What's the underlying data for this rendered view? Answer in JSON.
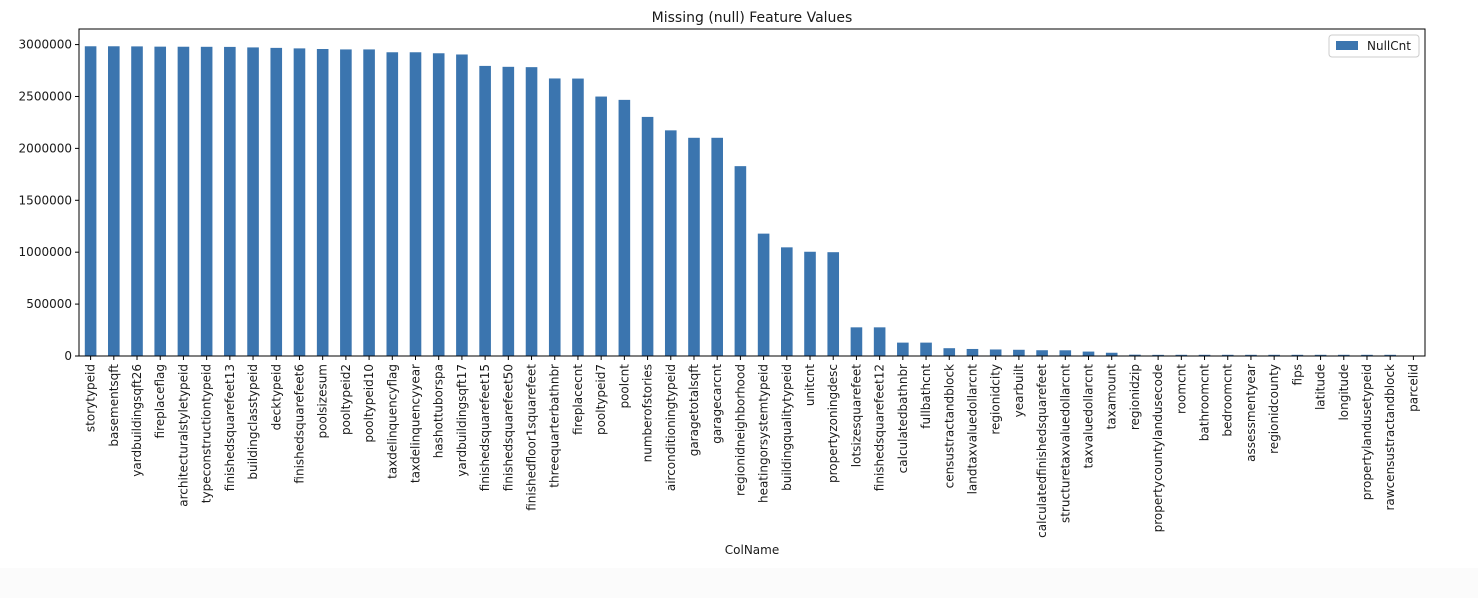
{
  "chart_data": {
    "type": "bar",
    "title": "Missing (null) Feature Values",
    "xlabel": "ColName",
    "ylabel": "",
    "ylim": [
      0,
      3150000
    ],
    "yticks": [
      0,
      500000,
      1000000,
      1500000,
      2000000,
      2500000,
      3000000
    ],
    "ytick_labels": [
      "0",
      "500000",
      "1000000",
      "1500000",
      "2000000",
      "2500000",
      "3000000"
    ],
    "grid": false,
    "legend_position": "top-right",
    "categories": [
      "storytypeid",
      "basementsqft",
      "yardbuildingsqft26",
      "fireplaceflag",
      "architecturalstyletypeid",
      "typeconstructiontypeid",
      "finishedsquarefeet13",
      "buildingclasstypeid",
      "decktypeid",
      "finishedsquarefeet6",
      "poolsizesum",
      "pooltypeid2",
      "pooltypeid10",
      "taxdelinquencyflag",
      "taxdelinquencyyear",
      "hashottuborspa",
      "yardbuildingsqft17",
      "finishedsquarefeet15",
      "finishedsquarefeet50",
      "finishedfloor1squarefeet",
      "threequarterbathnbr",
      "fireplacecnt",
      "pooltypeid7",
      "poolcnt",
      "numberofstories",
      "airconditioningtypeid",
      "garagetotalsqft",
      "garagecarcnt",
      "regionidneighborhood",
      "heatingorsystemtypeid",
      "buildingqualitytypeid",
      "unitcnt",
      "propertyzoningdesc",
      "lotsizesquarefeet",
      "finishedsquarefeet12",
      "calculatedbathnbr",
      "fullbathcnt",
      "censustractandblock",
      "landtaxvaluedollarcnt",
      "regionidcity",
      "yearbuilt",
      "calculatedfinishedsquarefeet",
      "structuretaxvaluedollarcnt",
      "taxvaluedollarcnt",
      "taxamount",
      "regionidzip",
      "propertycountylandusecode",
      "roomcnt",
      "bathroomcnt",
      "bedroomcnt",
      "assessmentyear",
      "regionidcounty",
      "fips",
      "latitude",
      "longitude",
      "propertylandusetypeid",
      "rawcensustractandblock",
      "parcelid"
    ],
    "series": [
      {
        "name": "NullCnt",
        "color": "#3b75af",
        "values": [
          2983590,
          2983590,
          2982460,
          2980050,
          2979160,
          2978470,
          2977540,
          2972590,
          2968120,
          2963220,
          2957260,
          2953250,
          2953250,
          2925880,
          2925880,
          2916190,
          2904470,
          2794420,
          2785640,
          2782500,
          2673590,
          2672580,
          2499320,
          2467290,
          2303140,
          2173700,
          2101950,
          2101950,
          1828820,
          1178820,
          1046730,
          1004180,
          1000000,
          276100,
          276033,
          128912,
          128912,
          75126,
          67733,
          62845,
          59928,
          55565,
          54982,
          42550,
          31312,
          12714,
          11000,
          11475,
          11462,
          11450,
          11440,
          11437,
          11437,
          11437,
          11437,
          11437,
          11437,
          0
        ]
      }
    ]
  }
}
